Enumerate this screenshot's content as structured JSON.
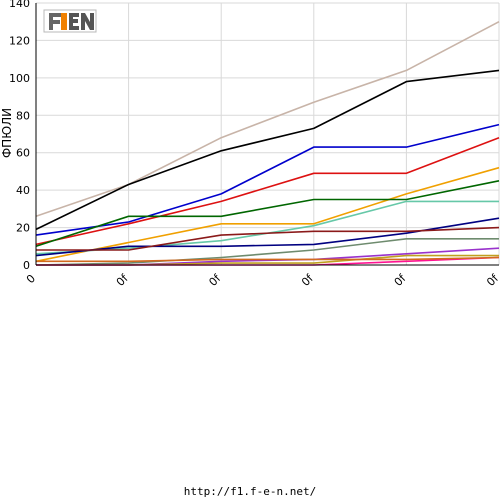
{
  "footer": {
    "url": "http://f1.f-e-n.net/"
  },
  "logo": {
    "text": "F1FEN"
  },
  "chart_data": {
    "type": "line",
    "title": "",
    "xlabel": "",
    "ylabel": "ФПЮЛИ",
    "ylim": [
      0,
      140
    ],
    "yticks": [
      0,
      20,
      40,
      60,
      80,
      100,
      120,
      140
    ],
    "categories": [
      "0",
      "0f",
      "0f",
      "0f",
      "0f",
      "0f"
    ],
    "grid": true,
    "legend": "none",
    "series": [
      {
        "color": "#c8b4a8",
        "values": [
          26,
          43,
          68,
          87,
          104,
          130
        ]
      },
      {
        "color": "#000000",
        "values": [
          19,
          43,
          61,
          73,
          98,
          104
        ]
      },
      {
        "color": "#0000cc",
        "values": [
          16,
          23,
          38,
          63,
          63,
          75
        ]
      },
      {
        "color": "#dd1111",
        "values": [
          11,
          22,
          34,
          49,
          49,
          68
        ]
      },
      {
        "color": "#f0a000",
        "values": [
          2,
          12,
          22,
          22,
          38,
          52
        ]
      },
      {
        "color": "#006600",
        "values": [
          10,
          26,
          26,
          35,
          35,
          45
        ]
      },
      {
        "color": "#66c8a8",
        "values": [
          6,
          9,
          13,
          21,
          34,
          34
        ]
      },
      {
        "color": "#000080",
        "values": [
          5,
          10,
          10,
          11,
          17,
          25
        ]
      },
      {
        "color": "#8b1a1a",
        "values": [
          8,
          8,
          16,
          18,
          18,
          20
        ]
      },
      {
        "color": "#6e8b6e",
        "values": [
          0,
          1,
          4,
          8,
          14,
          14
        ]
      },
      {
        "color": "#9932cc",
        "values": [
          0,
          0,
          2,
          3,
          6,
          9
        ]
      },
      {
        "color": "#c0a020",
        "values": [
          0,
          0,
          1,
          1,
          5,
          5
        ]
      },
      {
        "color": "#ff1493",
        "values": [
          0,
          0,
          0,
          0,
          2,
          4
        ]
      },
      {
        "color": "#d2691e",
        "values": [
          2,
          2,
          3,
          3,
          3,
          4
        ]
      }
    ]
  }
}
